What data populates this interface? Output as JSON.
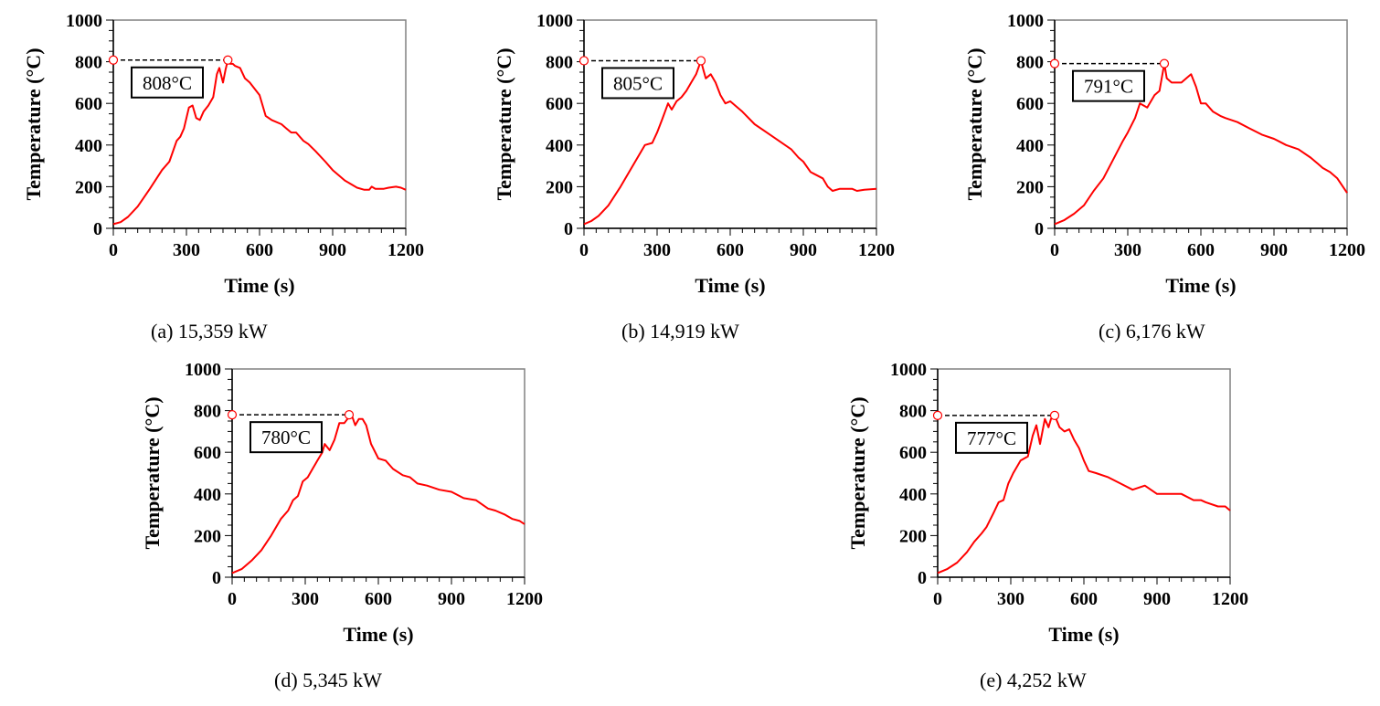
{
  "chart_data": [
    {
      "id": "a",
      "type": "line",
      "caption": "(a) 15,359 kW",
      "xlabel": "Time (s)",
      "ylabel": "Temperature (°C)",
      "xlim": [
        0,
        1200
      ],
      "ylim": [
        0,
        1000
      ],
      "xticks": [
        0,
        300,
        600,
        900,
        1200
      ],
      "yticks": [
        0,
        200,
        400,
        600,
        800,
        1000
      ],
      "grid": false,
      "line_color": "#ff0000",
      "peak": {
        "time": 470,
        "value": 808,
        "label": "808°C"
      },
      "series": [
        {
          "name": "Temperature",
          "x": [
            0,
            30,
            60,
            100,
            150,
            200,
            230,
            260,
            275,
            290,
            310,
            325,
            340,
            355,
            370,
            390,
            410,
            425,
            435,
            450,
            460,
            470,
            480,
            490,
            500,
            520,
            540,
            560,
            600,
            625,
            650,
            690,
            710,
            730,
            750,
            780,
            800,
            830,
            870,
            900,
            950,
            1000,
            1030,
            1050,
            1060,
            1075,
            1090,
            1110,
            1130,
            1160,
            1180,
            1200
          ],
          "y": [
            20,
            30,
            55,
            105,
            190,
            280,
            320,
            420,
            440,
            480,
            580,
            590,
            530,
            520,
            560,
            590,
            630,
            740,
            770,
            700,
            760,
            808,
            790,
            790,
            780,
            770,
            720,
            700,
            640,
            540,
            520,
            500,
            480,
            460,
            460,
            420,
            405,
            370,
            320,
            280,
            230,
            195,
            185,
            185,
            200,
            190,
            190,
            190,
            195,
            200,
            195,
            185
          ]
        }
      ]
    },
    {
      "id": "b",
      "type": "line",
      "caption": "(b) 14,919 kW",
      "xlabel": "Time (s)",
      "ylabel": "Temperature (°C)",
      "xlim": [
        0,
        1200
      ],
      "ylim": [
        0,
        1000
      ],
      "xticks": [
        0,
        300,
        600,
        900,
        1200
      ],
      "yticks": [
        0,
        200,
        400,
        600,
        800,
        1000
      ],
      "grid": false,
      "line_color": "#ff0000",
      "peak": {
        "time": 480,
        "value": 805,
        "label": "805°C"
      },
      "series": [
        {
          "name": "Temperature",
          "x": [
            0,
            30,
            60,
            100,
            150,
            200,
            250,
            280,
            300,
            320,
            345,
            360,
            380,
            400,
            420,
            440,
            460,
            480,
            490,
            500,
            520,
            540,
            560,
            580,
            600,
            650,
            700,
            750,
            800,
            850,
            880,
            900,
            930,
            980,
            1000,
            1020,
            1050,
            1100,
            1120,
            1150,
            1200
          ],
          "y": [
            20,
            35,
            60,
            110,
            200,
            300,
            400,
            410,
            460,
            520,
            600,
            570,
            610,
            630,
            660,
            700,
            740,
            805,
            760,
            720,
            740,
            700,
            640,
            600,
            610,
            560,
            500,
            460,
            420,
            380,
            340,
            320,
            270,
            240,
            200,
            180,
            190,
            190,
            180,
            185,
            190
          ]
        }
      ]
    },
    {
      "id": "c",
      "type": "line",
      "caption": "(c) 6,176 kW",
      "xlabel": "Time (s)",
      "ylabel": "Temperature (°C)",
      "xlim": [
        0,
        1200
      ],
      "ylim": [
        0,
        1000
      ],
      "xticks": [
        0,
        300,
        600,
        900,
        1200
      ],
      "yticks": [
        0,
        200,
        400,
        600,
        800,
        1000
      ],
      "grid": false,
      "line_color": "#ff0000",
      "peak": {
        "time": 450,
        "value": 791,
        "label": "791°C"
      },
      "series": [
        {
          "name": "Temperature",
          "x": [
            0,
            40,
            80,
            120,
            160,
            200,
            240,
            280,
            300,
            330,
            350,
            380,
            410,
            430,
            450,
            460,
            480,
            500,
            520,
            540,
            560,
            580,
            600,
            620,
            650,
            680,
            700,
            750,
            800,
            850,
            900,
            950,
            1000,
            1050,
            1080,
            1100,
            1130,
            1160,
            1200
          ],
          "y": [
            20,
            40,
            70,
            110,
            180,
            240,
            330,
            420,
            460,
            530,
            600,
            580,
            640,
            660,
            791,
            720,
            700,
            700,
            700,
            720,
            740,
            680,
            600,
            600,
            560,
            540,
            530,
            510,
            480,
            450,
            430,
            400,
            380,
            340,
            310,
            290,
            270,
            240,
            170
          ]
        }
      ]
    },
    {
      "id": "d",
      "type": "line",
      "caption": "(d) 5,345 kW",
      "xlabel": "Time (s)",
      "ylabel": "Temperature (°C)",
      "xlim": [
        0,
        1200
      ],
      "ylim": [
        0,
        1000
      ],
      "xticks": [
        0,
        300,
        600,
        900,
        1200
      ],
      "yticks": [
        0,
        200,
        400,
        600,
        800,
        1000
      ],
      "grid": false,
      "line_color": "#ff0000",
      "peak": {
        "time": 480,
        "value": 780,
        "label": "780°C"
      },
      "series": [
        {
          "name": "Temperature",
          "x": [
            0,
            40,
            80,
            120,
            160,
            200,
            230,
            250,
            270,
            290,
            310,
            330,
            350,
            370,
            380,
            400,
            420,
            440,
            460,
            480,
            490,
            505,
            520,
            535,
            550,
            570,
            600,
            630,
            660,
            700,
            730,
            760,
            800,
            850,
            900,
            950,
            1000,
            1050,
            1080,
            1120,
            1150,
            1180,
            1200
          ],
          "y": [
            20,
            40,
            80,
            130,
            200,
            280,
            320,
            370,
            390,
            460,
            480,
            520,
            560,
            600,
            640,
            610,
            660,
            740,
            740,
            770,
            780,
            730,
            760,
            760,
            730,
            640,
            570,
            560,
            520,
            490,
            480,
            450,
            440,
            420,
            410,
            380,
            370,
            330,
            320,
            300,
            280,
            270,
            255
          ]
        }
      ]
    },
    {
      "id": "e",
      "type": "line",
      "caption": "(e) 4,252 kW",
      "xlabel": "Time (s)",
      "ylabel": "Temperature (°C)",
      "xlim": [
        0,
        1200
      ],
      "ylim": [
        0,
        1000
      ],
      "xticks": [
        0,
        300,
        600,
        900,
        1200
      ],
      "yticks": [
        0,
        200,
        400,
        600,
        800,
        1000
      ],
      "grid": false,
      "line_color": "#ff0000",
      "peak": {
        "time": 480,
        "value": 777,
        "label": "777°C"
      },
      "series": [
        {
          "name": "Temperature",
          "x": [
            0,
            40,
            80,
            120,
            150,
            180,
            200,
            230,
            250,
            270,
            290,
            310,
            340,
            370,
            390,
            405,
            420,
            440,
            455,
            465,
            480,
            500,
            520,
            540,
            560,
            580,
            600,
            620,
            650,
            700,
            750,
            800,
            850,
            900,
            950,
            1000,
            1050,
            1080,
            1100,
            1150,
            1180,
            1200
          ],
          "y": [
            20,
            40,
            70,
            120,
            170,
            210,
            240,
            310,
            360,
            370,
            450,
            500,
            560,
            580,
            680,
            730,
            640,
            760,
            720,
            760,
            777,
            720,
            700,
            710,
            660,
            620,
            560,
            510,
            500,
            480,
            450,
            420,
            440,
            400,
            400,
            400,
            370,
            370,
            360,
            340,
            340,
            320
          ]
        }
      ]
    }
  ]
}
